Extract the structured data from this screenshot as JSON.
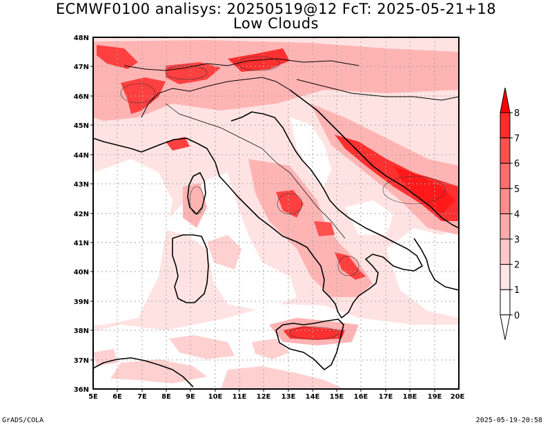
{
  "title": "ECMWF0100 analisys: 20250519@12 FcT: 2025-05-21+18",
  "subtitle": "Low Clouds",
  "footer_left": "GrADS/COLA",
  "footer_right": "2025-05-19-20:58",
  "lat_labels": [
    "48N",
    "47N",
    "46N",
    "45N",
    "44N",
    "43N",
    "42N",
    "41N",
    "40N",
    "39N",
    "38N",
    "37N",
    "36N"
  ],
  "lon_labels": [
    "5E",
    "6E",
    "7E",
    "8E",
    "9E",
    "10E",
    "11E",
    "12E",
    "13E",
    "14E",
    "15E",
    "16E",
    "17E",
    "18E",
    "19E",
    "20E"
  ],
  "colorbar": {
    "labels": [
      "0",
      "1",
      "2",
      "3",
      "4",
      "5",
      "6",
      "7",
      "8"
    ],
    "colors": [
      "#ffffff",
      "#ffe6e6",
      "#ffc8c8",
      "#ffaaaa",
      "#ff8c8c",
      "#ff6e6e",
      "#ff5050",
      "#ff2a2a",
      "#ff0000"
    ]
  }
}
